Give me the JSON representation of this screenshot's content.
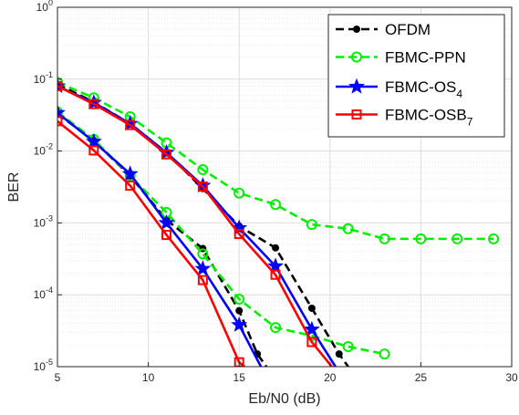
{
  "chart_data": {
    "type": "line",
    "xlabel": "Eb/N0 (dB)",
    "ylabel": "BER",
    "xlim": [
      5,
      30
    ],
    "ylim": [
      1e-05,
      1
    ],
    "yscale": "log",
    "grid": true,
    "minor_grid": true,
    "legend_position": "top-right",
    "x_ticks": [
      "5",
      "10",
      "15",
      "20",
      "25",
      "30"
    ],
    "y_ticks": [
      {
        "base": "10",
        "exp": "0",
        "value": 1
      },
      {
        "base": "10",
        "exp": "-1",
        "value": 0.1
      },
      {
        "base": "10",
        "exp": "-2",
        "value": 0.01
      },
      {
        "base": "10",
        "exp": "-3",
        "value": 0.001
      },
      {
        "base": "10",
        "exp": "-4",
        "value": 0.0001
      },
      {
        "base": "10",
        "exp": "-5",
        "value": 1e-05
      }
    ],
    "series": [
      {
        "name": "OFDM",
        "name_sub": "",
        "color": "#000000",
        "dash": "dashed",
        "marker": "dot",
        "curves": [
          {
            "x": [
              5,
              7,
              9,
              11,
              13,
              15,
              17,
              19,
              20.5,
              21
            ],
            "y": [
              0.085,
              0.048,
              0.024,
              0.0095,
              0.003,
              0.0009,
              0.00045,
              6.5e-05,
              1.5e-05,
              1e-05
            ]
          },
          {
            "x": [
              5,
              7,
              9,
              11,
              13,
              15,
              16,
              16.5
            ],
            "y": [
              0.033,
              0.014,
              0.0045,
              0.0011,
              0.00044,
              6e-05,
              1.5e-05,
              1e-05
            ]
          }
        ]
      },
      {
        "name": "FBMC-PPN",
        "name_sub": "",
        "color": "#00ee00",
        "dash": "dashed",
        "marker": "circle",
        "curves": [
          {
            "x": [
              5,
              7,
              9,
              11,
              13,
              15,
              17,
              19,
              21,
              23,
              25,
              27,
              29
            ],
            "y": [
              0.09,
              0.055,
              0.03,
              0.013,
              0.0055,
              0.0026,
              0.0018,
              0.00095,
              0.00083,
              0.0006,
              0.0006,
              0.0006,
              0.0006
            ]
          },
          {
            "x": [
              5,
              7,
              9,
              11,
              13,
              15,
              17,
              19,
              21,
              23
            ],
            "y": [
              0.035,
              0.0145,
              0.0045,
              0.0014,
              0.00037,
              8.7e-05,
              3.5e-05,
              2.7e-05,
              1.9e-05,
              1.5e-05
            ]
          }
        ]
      },
      {
        "name": "FBMC-OS",
        "name_sub": "4",
        "color": "#0000ff",
        "dash": "solid",
        "marker": "star",
        "curves": [
          {
            "x": [
              5,
              7,
              9,
              11,
              13,
              15,
              17,
              19,
              20.3
            ],
            "y": [
              0.08,
              0.047,
              0.024,
              0.0095,
              0.0033,
              0.00085,
              0.00025,
              3.3e-05,
              1e-05
            ]
          },
          {
            "x": [
              5,
              7,
              9,
              11,
              13,
              15,
              16.2
            ],
            "y": [
              0.034,
              0.0135,
              0.0048,
              0.001,
              0.00023,
              3.8e-05,
              1e-05
            ]
          }
        ]
      },
      {
        "name": "FBMC-OSB",
        "name_sub": "7",
        "color": "#ff0000",
        "dash": "solid",
        "marker": "square",
        "curves": [
          {
            "x": [
              5,
              7,
              9,
              11,
              13,
              15,
              17,
              19,
              20.1
            ],
            "y": [
              0.08,
              0.045,
              0.023,
              0.009,
              0.0032,
              0.0007,
              0.00019,
              2.2e-05,
              1e-05
            ]
          },
          {
            "x": [
              5,
              7,
              9,
              11,
              13,
              15,
              15.3
            ],
            "y": [
              0.026,
              0.0102,
              0.0033,
              0.00068,
              0.00016,
              1.15e-05,
              1e-05
            ]
          }
        ]
      }
    ]
  }
}
